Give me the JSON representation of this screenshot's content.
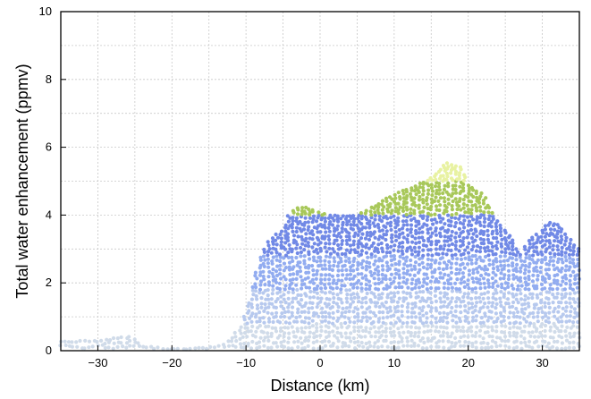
{
  "chart_data": {
    "type": "scatter",
    "title": "",
    "xlabel": "Distance (km)",
    "ylabel": "Total water enhancement (ppmv)",
    "xlim": [
      -35,
      35
    ],
    "ylim": [
      0,
      10
    ],
    "xticks": [
      -30,
      -20,
      -10,
      0,
      10,
      20,
      30
    ],
    "yticks": [
      0,
      2,
      4,
      6,
      8,
      10
    ],
    "grid": true,
    "color_by_value": [
      {
        "max": 0.8,
        "color": "#d0dbe9"
      },
      {
        "max": 1.8,
        "color": "#b7c9ee"
      },
      {
        "max": 2.8,
        "color": "#92acf0"
      },
      {
        "max": 4.0,
        "color": "#7189e6"
      },
      {
        "max": 5.0,
        "color": "#a8c85a"
      },
      {
        "max": 10,
        "color": "#e8f2a2"
      }
    ],
    "series": [
      {
        "values_note_x_y": "distance (km), enhancement (ppmv)",
        "upper_envelope": [
          [
            -35,
            0.3
          ],
          [
            -30,
            0.3
          ],
          [
            -27,
            0.4
          ],
          [
            -25.5,
            0.45
          ],
          [
            -24,
            0.15
          ],
          [
            -20,
            0.05
          ],
          [
            -15,
            0.1
          ],
          [
            -13,
            0.2
          ],
          [
            -11,
            0.6
          ],
          [
            -10,
            1.2
          ],
          [
            -9,
            2.0
          ],
          [
            -8,
            2.8
          ],
          [
            -7,
            3.2
          ],
          [
            -6,
            3.4
          ],
          [
            -5,
            3.6
          ],
          [
            -4,
            4.1
          ],
          [
            -3,
            4.25
          ],
          [
            -1,
            4.2
          ],
          [
            0,
            4.05
          ],
          [
            3,
            4.0
          ],
          [
            5,
            4.0
          ],
          [
            7,
            4.25
          ],
          [
            9,
            4.5
          ],
          [
            12,
            4.8
          ],
          [
            15,
            5.1
          ],
          [
            17,
            5.55
          ],
          [
            19,
            5.45
          ],
          [
            20,
            4.9
          ],
          [
            22,
            4.6
          ],
          [
            24,
            3.8
          ],
          [
            26,
            3.3
          ],
          [
            27,
            2.8
          ],
          [
            28,
            3.2
          ],
          [
            30,
            3.6
          ],
          [
            31,
            3.8
          ],
          [
            32,
            3.75
          ],
          [
            33,
            3.5
          ],
          [
            34,
            3.2
          ],
          [
            35,
            3.0
          ]
        ]
      }
    ]
  }
}
